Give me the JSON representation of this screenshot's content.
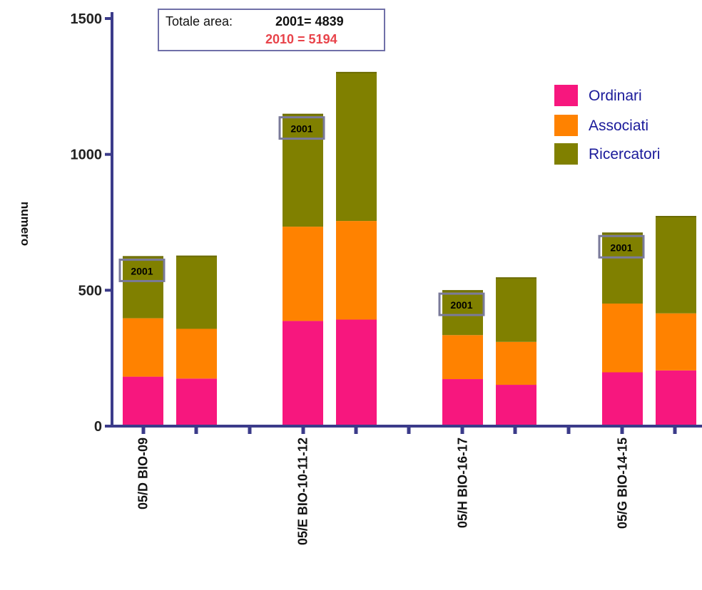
{
  "chart_data": {
    "type": "bar",
    "stacked": true,
    "ylabel": "numero",
    "ylim": [
      0,
      1500
    ],
    "yticks": [
      0,
      500,
      1000,
      1500
    ],
    "categories": [
      "05/D BIO-09",
      "05/E BIO-10-11-12",
      "05/H BIO-16-17",
      "05/G BIO-14-15"
    ],
    "bar_years": [
      "2001",
      "2010"
    ],
    "series": [
      {
        "name": "Ordinari",
        "color": "#f7177e",
        "values_2001": [
          182,
          387,
          173,
          198
        ],
        "values_2010": [
          175,
          392,
          152,
          205
        ]
      },
      {
        "name": "Associati",
        "color": "#ff8200",
        "values_2001": [
          215,
          347,
          162,
          253
        ],
        "values_2010": [
          183,
          363,
          158,
          210
        ]
      },
      {
        "name": "Ricercatori",
        "color": "#808000",
        "values_2001": [
          226,
          413,
          163,
          259
        ],
        "values_2010": [
          267,
          546,
          235,
          356
        ]
      }
    ],
    "bar_tag": "2001",
    "legend_position": "top-right",
    "grid": false
  },
  "annotation": {
    "label": "Totale area:",
    "total_2001": "2001= 4839",
    "total_2010": "2010 = 5194"
  },
  "colors": {
    "axis": "#3b3b8a",
    "tag_border": "#7a7a9a",
    "highlight_2010": "#e8434a"
  }
}
